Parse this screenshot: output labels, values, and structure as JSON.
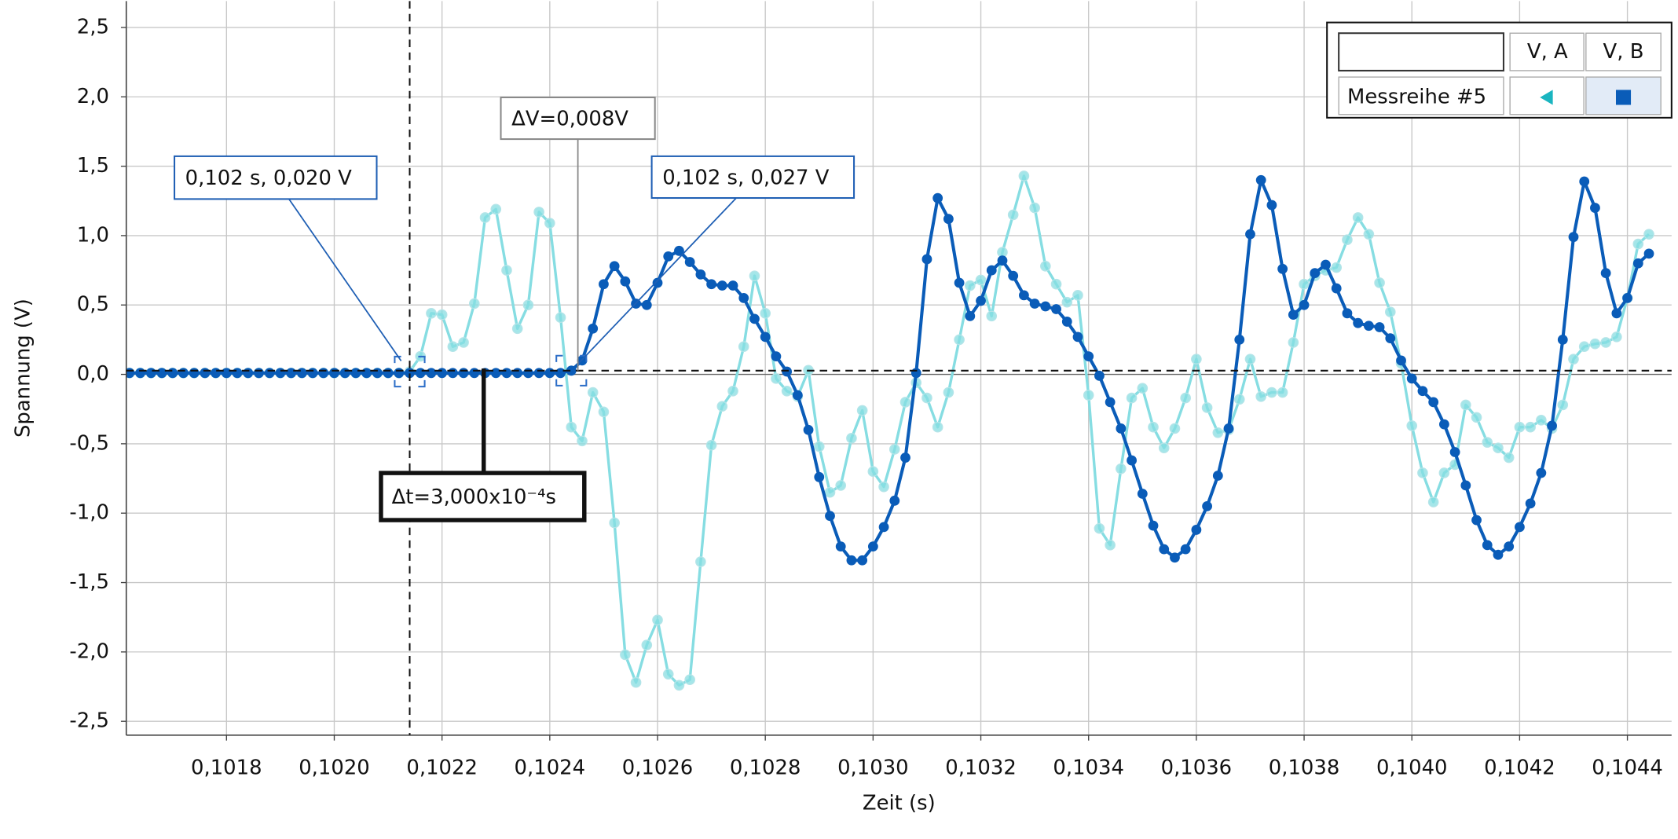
{
  "chart_data": {
    "type": "line",
    "xlabel": "Zeit (s)",
    "ylabel": "Spannung (V)",
    "legend_title": "Messreihe #5",
    "annotations": [
      "0,102 s, 0,020 V",
      "0,102 s, 0,027 V",
      "ΔV=0,008V",
      "Δt=3,000x10⁻⁴s"
    ],
    "xlim": [
      0.101614,
      0.104482
    ],
    "ylim": [
      -2.6,
      2.69
    ],
    "grid": true,
    "xticks": [
      {
        "value": 0.1018,
        "label": "0,1018"
      },
      {
        "value": 0.102,
        "label": "0,1020"
      },
      {
        "value": 0.1022,
        "label": "0,1022"
      },
      {
        "value": 0.1024,
        "label": "0,1024"
      },
      {
        "value": 0.1026,
        "label": "0,1026"
      },
      {
        "value": 0.1028,
        "label": "0,1028"
      },
      {
        "value": 0.103,
        "label": "0,1030"
      },
      {
        "value": 0.1032,
        "label": "0,1032"
      },
      {
        "value": 0.1034,
        "label": "0,1034"
      },
      {
        "value": 0.1036,
        "label": "0,1036"
      },
      {
        "value": 0.1038,
        "label": "0,1038"
      },
      {
        "value": 0.104,
        "label": "0,1040"
      },
      {
        "value": 0.1042,
        "label": "0,1042"
      },
      {
        "value": 0.1044,
        "label": "0,1044"
      }
    ],
    "yticks": [
      {
        "value": 2.5,
        "label": "2,5"
      },
      {
        "value": 2,
        "label": "2,0"
      },
      {
        "value": 1.5,
        "label": "1,5"
      },
      {
        "value": 1,
        "label": "1,0"
      },
      {
        "value": 0.5,
        "label": "0,5"
      },
      {
        "value": 0,
        "label": "0,0"
      },
      {
        "value": -0.5,
        "label": "-0,5"
      },
      {
        "value": -1,
        "label": "-1,0"
      },
      {
        "value": -1.5,
        "label": "-1,5"
      },
      {
        "value": -2,
        "label": "-2,0"
      },
      {
        "value": -2.5,
        "label": "-2,5"
      }
    ],
    "x": [
      0.10162,
      0.10164,
      0.10166,
      0.10168,
      0.1017,
      0.10172,
      0.10174,
      0.10176,
      0.10178,
      0.1018,
      0.10182,
      0.10184,
      0.10186,
      0.10188,
      0.1019,
      0.10192,
      0.10194,
      0.10196,
      0.10198,
      0.102,
      0.10202,
      0.10204,
      0.10206,
      0.10208,
      0.1021,
      0.10212,
      0.10214,
      0.10216,
      0.10218,
      0.1022,
      0.10222,
      0.10224,
      0.10226,
      0.10228,
      0.1023,
      0.10232,
      0.10234,
      0.10236,
      0.10238,
      0.1024,
      0.10242,
      0.10244,
      0.10246,
      0.10248,
      0.1025,
      0.10252,
      0.10254,
      0.10256,
      0.10258,
      0.1026,
      0.10262,
      0.10264,
      0.10266,
      0.10268,
      0.1027,
      0.10272,
      0.10274,
      0.10276,
      0.10278,
      0.1028,
      0.10282,
      0.10284,
      0.10286,
      0.10288,
      0.1029,
      0.10292,
      0.10294,
      0.10296,
      0.10298,
      0.103,
      0.10302,
      0.10304,
      0.10306,
      0.10308,
      0.1031,
      0.10312,
      0.10314,
      0.10316,
      0.10318,
      0.1032,
      0.10322,
      0.10324,
      0.10326,
      0.10328,
      0.1033,
      0.10332,
      0.10334,
      0.10336,
      0.10338,
      0.1034,
      0.10342,
      0.10344,
      0.10346,
      0.10348,
      0.1035,
      0.10352,
      0.10354,
      0.10356,
      0.10358,
      0.1036,
      0.10362,
      0.10364,
      0.10366,
      0.10368,
      0.1037,
      0.10372,
      0.10374,
      0.10376,
      0.10378,
      0.1038,
      0.10382,
      0.10384,
      0.10386,
      0.10388,
      0.1039,
      0.10392,
      0.10394,
      0.10396,
      0.10398,
      0.104,
      0.10402,
      0.10404,
      0.10406,
      0.10408,
      0.1041,
      0.10412,
      0.10414,
      0.10416,
      0.10418,
      0.1042,
      0.10422,
      0.10424,
      0.10426,
      0.10428,
      0.1043,
      0.10432,
      0.10434,
      0.10436,
      0.10438,
      0.1044,
      0.10442,
      0.10444
    ],
    "series": [
      {
        "name": "V, A",
        "color": "#86dde2",
        "values": [
          0.01,
          0.01,
          0.01,
          0.01,
          0.01,
          0.01,
          0.01,
          0.01,
          0.01,
          0.01,
          0.01,
          0.01,
          0.01,
          0.01,
          0.01,
          0.01,
          0.01,
          0.01,
          0.01,
          0.01,
          0.01,
          0.01,
          0.01,
          0.01,
          0.01,
          0.01,
          0.02,
          0.13,
          0.44,
          0.43,
          0.2,
          0.23,
          0.51,
          1.13,
          1.19,
          0.75,
          0.33,
          0.5,
          1.17,
          1.09,
          0.41,
          -0.38,
          -0.48,
          -0.13,
          -0.27,
          -1.07,
          -2.02,
          -2.22,
          -1.95,
          -1.77,
          -2.16,
          -2.24,
          -2.2,
          -1.35,
          -0.51,
          -0.23,
          -0.12,
          0.2,
          0.71,
          0.44,
          -0.03,
          -0.12,
          -0.16,
          0.03,
          -0.52,
          -0.85,
          -0.8,
          -0.46,
          -0.26,
          -0.7,
          -0.81,
          -0.54,
          -0.2,
          -0.06,
          -0.17,
          -0.38,
          -0.13,
          0.25,
          0.64,
          0.68,
          0.42,
          0.88,
          1.15,
          1.43,
          1.2,
          0.78,
          0.65,
          0.52,
          0.57,
          -0.15,
          -1.11,
          -1.23,
          -0.68,
          -0.17,
          -0.1,
          -0.38,
          -0.53,
          -0.39,
          -0.17,
          0.11,
          -0.24,
          -0.42,
          -0.4,
          -0.18,
          0.11,
          -0.16,
          -0.13,
          -0.13,
          0.23,
          0.65,
          0.71,
          0.75,
          0.77,
          0.97,
          1.13,
          1.01,
          0.66,
          0.45,
          0.08,
          -0.37,
          -0.71,
          -0.92,
          -0.71,
          -0.65,
          -0.22,
          -0.31,
          -0.49,
          -0.53,
          -0.6,
          -0.38,
          -0.38,
          -0.33,
          -0.39,
          -0.22,
          0.11,
          0.2,
          0.22,
          0.23,
          0.27,
          0.55,
          0.94,
          1.01
        ]
      },
      {
        "name": "V, B",
        "color": "#0a5cb8",
        "values": [
          0.01,
          0.01,
          0.01,
          0.01,
          0.01,
          0.01,
          0.01,
          0.01,
          0.01,
          0.01,
          0.01,
          0.01,
          0.01,
          0.01,
          0.01,
          0.01,
          0.01,
          0.01,
          0.01,
          0.01,
          0.01,
          0.01,
          0.01,
          0.01,
          0.01,
          0.01,
          0.01,
          0.01,
          0.01,
          0.01,
          0.01,
          0.01,
          0.01,
          0.01,
          0.01,
          0.01,
          0.01,
          0.01,
          0.01,
          0.01,
          0.01,
          0.027,
          0.1,
          0.33,
          0.65,
          0.78,
          0.67,
          0.51,
          0.5,
          0.66,
          0.85,
          0.89,
          0.81,
          0.72,
          0.65,
          0.64,
          0.64,
          0.55,
          0.4,
          0.27,
          0.13,
          0.02,
          -0.15,
          -0.4,
          -0.74,
          -1.02,
          -1.24,
          -1.34,
          -1.34,
          -1.24,
          -1.1,
          -0.91,
          -0.6,
          0.01,
          0.83,
          1.27,
          1.12,
          0.66,
          0.42,
          0.53,
          0.75,
          0.82,
          0.71,
          0.57,
          0.51,
          0.49,
          0.47,
          0.38,
          0.27,
          0.13,
          -0.01,
          -0.2,
          -0.39,
          -0.62,
          -0.86,
          -1.09,
          -1.26,
          -1.32,
          -1.26,
          -1.12,
          -0.95,
          -0.73,
          -0.39,
          0.25,
          1.01,
          1.4,
          1.22,
          0.76,
          0.43,
          0.5,
          0.73,
          0.79,
          0.62,
          0.44,
          0.37,
          0.35,
          0.34,
          0.26,
          0.1,
          -0.03,
          -0.12,
          -0.2,
          -0.36,
          -0.56,
          -0.8,
          -1.05,
          -1.23,
          -1.3,
          -1.24,
          -1.1,
          -0.93,
          -0.71,
          -0.37,
          0.25,
          0.99,
          1.39,
          1.2,
          0.73,
          0.44,
          0.55,
          0.8,
          0.87
        ]
      }
    ]
  }
}
